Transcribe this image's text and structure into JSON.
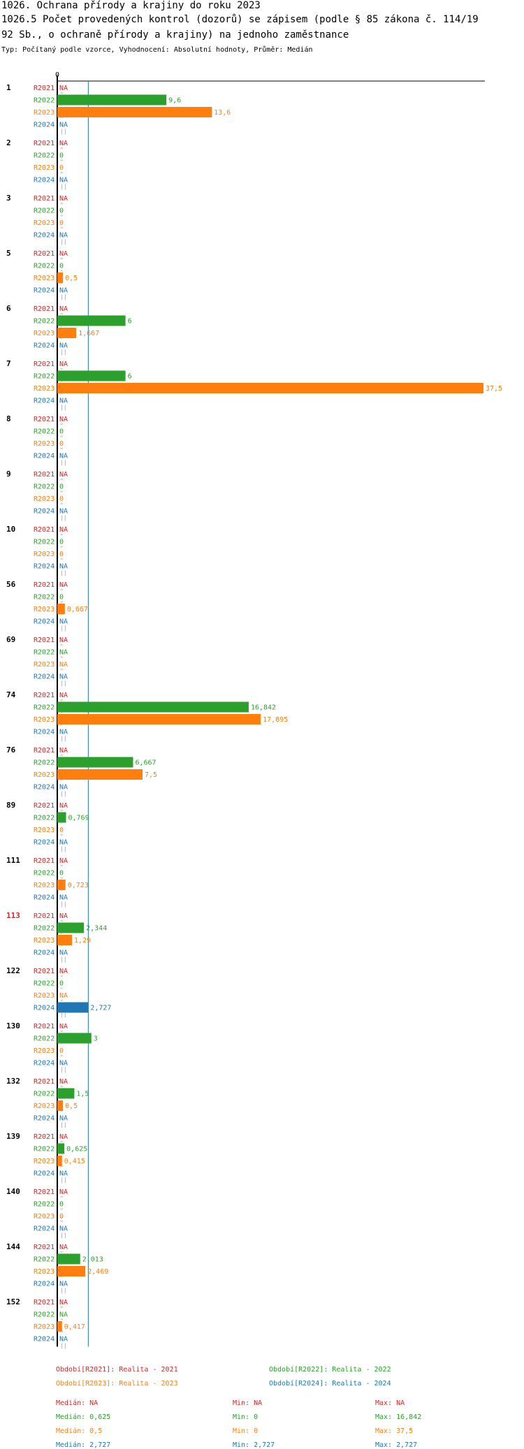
{
  "header": {
    "title": "1026. Ochrana přírody a krajiny do roku 2023",
    "subtitle_line1": "1026.5 Počet provedených kontrol (dozorů) se zápisem (podle § 85 zákona č. 114/19",
    "subtitle_line2": "92 Sb., o ochraně přírody a krajiny) na jednoho zaměstnance",
    "meta": "Typ: Počítaný podle vzorce, Vyhodnocení: Absolutní hodnoty, Průměr: Medián"
  },
  "colors": {
    "R2021": "#d62728",
    "R2022": "#2ca02c",
    "R2023": "#ff7f0e",
    "R2024": "#1f77b4",
    "highlight_group": "#d62728",
    "median_line": "#1f77b4"
  },
  "chart_data": {
    "type": "bar",
    "orientation": "horizontal",
    "axis_zero_label": "0",
    "xlim": [
      0,
      37.5
    ],
    "median_line_value": 2.727,
    "series_labels": [
      "R2021",
      "R2022",
      "R2023",
      "R2024"
    ],
    "highlighted_group": "113",
    "groups": [
      {
        "id": "1",
        "values": [
          null,
          9.6,
          13.6,
          null
        ],
        "labels": [
          "NA",
          "9,6",
          "13,6",
          "NA"
        ]
      },
      {
        "id": "2",
        "values": [
          null,
          0,
          0,
          null
        ],
        "labels": [
          "NA",
          "0",
          "0",
          "NA"
        ]
      },
      {
        "id": "3",
        "values": [
          null,
          0,
          0,
          null
        ],
        "labels": [
          "NA",
          "0",
          "0",
          "NA"
        ]
      },
      {
        "id": "5",
        "values": [
          null,
          0,
          0.5,
          null
        ],
        "labels": [
          "NA",
          "0",
          "0,5",
          "NA"
        ]
      },
      {
        "id": "6",
        "values": [
          null,
          6,
          1.667,
          null
        ],
        "labels": [
          "NA",
          "6",
          "1,667",
          "NA"
        ]
      },
      {
        "id": "7",
        "values": [
          null,
          6,
          37.5,
          null
        ],
        "labels": [
          "NA",
          "6",
          "37,5",
          "NA"
        ]
      },
      {
        "id": "8",
        "values": [
          null,
          0,
          0,
          null
        ],
        "labels": [
          "NA",
          "0",
          "0",
          "NA"
        ]
      },
      {
        "id": "9",
        "values": [
          null,
          0,
          0,
          null
        ],
        "labels": [
          "NA",
          "0",
          "0",
          "NA"
        ]
      },
      {
        "id": "10",
        "values": [
          null,
          0,
          0,
          null
        ],
        "labels": [
          "NA",
          "0",
          "0",
          "NA"
        ]
      },
      {
        "id": "56",
        "values": [
          null,
          0,
          0.667,
          null
        ],
        "labels": [
          "NA",
          "0",
          "0,667",
          "NA"
        ]
      },
      {
        "id": "69",
        "values": [
          null,
          null,
          null,
          null
        ],
        "labels": [
          "NA",
          "NA",
          "NA",
          "NA"
        ]
      },
      {
        "id": "74",
        "values": [
          null,
          16.842,
          17.895,
          null
        ],
        "labels": [
          "NA",
          "16,842",
          "17,895",
          "NA"
        ]
      },
      {
        "id": "76",
        "values": [
          null,
          6.667,
          7.5,
          null
        ],
        "labels": [
          "NA",
          "6,667",
          "7,5",
          "NA"
        ]
      },
      {
        "id": "89",
        "values": [
          null,
          0.769,
          0,
          null
        ],
        "labels": [
          "NA",
          "0,769",
          "0",
          "NA"
        ]
      },
      {
        "id": "111",
        "values": [
          null,
          0,
          0.723,
          null
        ],
        "labels": [
          "NA",
          "0",
          "0,723",
          "NA"
        ]
      },
      {
        "id": "113",
        "values": [
          null,
          2.344,
          1.29,
          null
        ],
        "labels": [
          "NA",
          "2,344",
          "1,29",
          "NA"
        ]
      },
      {
        "id": "122",
        "values": [
          null,
          0,
          null,
          2.727
        ],
        "labels": [
          "NA",
          "0",
          "NA",
          "2,727"
        ]
      },
      {
        "id": "130",
        "values": [
          null,
          3,
          0,
          null
        ],
        "labels": [
          "NA",
          "3",
          "0",
          "NA"
        ]
      },
      {
        "id": "132",
        "values": [
          null,
          1.5,
          0.5,
          null
        ],
        "labels": [
          "NA",
          "1,5",
          "0,5",
          "NA"
        ]
      },
      {
        "id": "139",
        "values": [
          null,
          0.625,
          0.415,
          null
        ],
        "labels": [
          "NA",
          "0,625",
          "0,415",
          "NA"
        ]
      },
      {
        "id": "140",
        "values": [
          null,
          0,
          0,
          null
        ],
        "labels": [
          "NA",
          "0",
          "0",
          "NA"
        ]
      },
      {
        "id": "144",
        "values": [
          null,
          2.013,
          2.469,
          null
        ],
        "labels": [
          "NA",
          "2,013",
          "2,469",
          "NA"
        ]
      },
      {
        "id": "152",
        "values": [
          null,
          null,
          0.417,
          null
        ],
        "labels": [
          "NA",
          "NA",
          "0,417",
          "NA"
        ]
      }
    ]
  },
  "legend": {
    "items": [
      {
        "key": "R2021",
        "text": "Období[R2021]: Realita - 2021"
      },
      {
        "key": "R2022",
        "text": "Období[R2022]: Realita - 2022"
      },
      {
        "key": "R2023",
        "text": "Období[R2023]: Realita - 2023"
      },
      {
        "key": "R2024",
        "text": "Období[R2024]: Realita - 2024"
      }
    ]
  },
  "stats": [
    {
      "key": "R2021",
      "median": "Medián: NA",
      "min": "Min: NA",
      "max": "Max: NA"
    },
    {
      "key": "R2022",
      "median": "Medián: 0,625",
      "min": "Min: 0",
      "max": "Max: 16,842"
    },
    {
      "key": "R2023",
      "median": "Medián: 0,5",
      "min": "Min: 0",
      "max": "Max: 37,5"
    },
    {
      "key": "R2024",
      "median": "Medián: 2,727",
      "min": "Min: 2,727",
      "max": "Max: 2,727"
    }
  ]
}
